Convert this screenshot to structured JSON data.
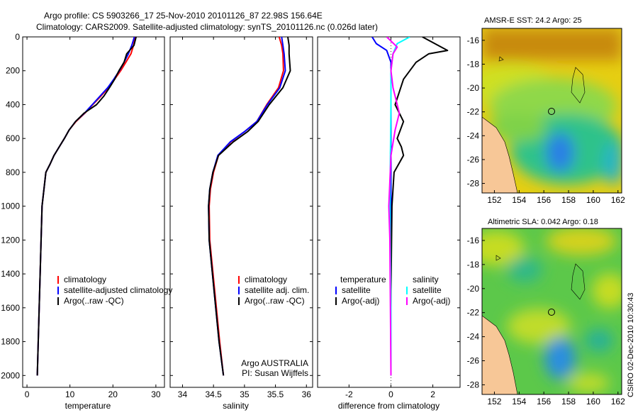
{
  "header": {
    "title_line1": "Argo profile: CS 5903266_17 25-Nov-2010 20101126_87 22.98S 156.64E",
    "title_line2": "Climatology: CARS2009. Satellite-adjusted climatology: synTS_20101126.nc (0.026d later)"
  },
  "side_stamp": "CSIRO 02-Dec-2010 10:30:43",
  "colors": {
    "clim": "#ff0000",
    "sat": "#0000ff",
    "argo": "#000000",
    "sal_sat": "#00ffff",
    "sal_argo": "#ff00ff"
  },
  "chart_data": [
    {
      "type": "line",
      "id": "temperature",
      "xlabel": "temperature",
      "ylabel": "",
      "xlim": [
        -1,
        32
      ],
      "ylim": [
        0,
        2070
      ],
      "xticks": [
        "0",
        "10",
        "20",
        "30"
      ],
      "xtick_values": [
        0,
        10,
        20,
        30
      ],
      "yticks": [
        "0",
        "200",
        "400",
        "600",
        "800",
        "1000",
        "1200",
        "1400",
        "1600",
        "1800",
        "2000"
      ],
      "legend": [
        "climatology",
        "satellite-adjusted climatology",
        "Argo(..raw -QC)"
      ],
      "series": [
        {
          "name": "climatology",
          "color": "#ff0000",
          "x": [
            25.2,
            24.8,
            24.2,
            23.0,
            21.8,
            20.4,
            19.0,
            17.2,
            15.3,
            13.5,
            11.4,
            9.8,
            8.7,
            7.5,
            6.3,
            5.4,
            4.4,
            3.5,
            2.4
          ],
          "y": [
            0,
            50,
            100,
            150,
            200,
            250,
            300,
            350,
            400,
            450,
            500,
            550,
            600,
            650,
            700,
            750,
            800,
            1000,
            2000
          ]
        },
        {
          "name": "satellite-adjusted climatology",
          "color": "#0000ff",
          "x": [
            25.0,
            24.4,
            23.6,
            22.6,
            21.5,
            20.2,
            18.8,
            17.0,
            15.2,
            13.4,
            11.3,
            9.8,
            8.7,
            7.5,
            6.3,
            5.4,
            4.4,
            3.5,
            2.4
          ],
          "y": [
            0,
            50,
            100,
            150,
            200,
            250,
            300,
            350,
            400,
            450,
            500,
            550,
            600,
            650,
            700,
            750,
            800,
            1000,
            2000
          ]
        },
        {
          "name": "Argo(..raw -QC)",
          "color": "#000000",
          "x": [
            25.4,
            24.9,
            23.2,
            22.6,
            21.4,
            20.4,
            19.2,
            17.9,
            16.2,
            13.3,
            11.3,
            9.8,
            8.7,
            7.5,
            6.3,
            5.4,
            4.4,
            3.5,
            2.4
          ],
          "y": [
            0,
            50,
            100,
            150,
            200,
            250,
            300,
            350,
            400,
            450,
            500,
            550,
            600,
            650,
            700,
            750,
            800,
            1000,
            2000
          ]
        }
      ]
    },
    {
      "type": "line",
      "id": "salinity",
      "xlabel": "salinity",
      "ylabel": "",
      "xlim": [
        33.8,
        36.1
      ],
      "ylim": [
        0,
        2070
      ],
      "xticks": [
        "34",
        "34.5",
        "35",
        "35.5",
        "36"
      ],
      "xtick_values": [
        34,
        34.5,
        35,
        35.5,
        36
      ],
      "legend": [
        "climatology",
        "satellite adj. clim.",
        "Argo(..raw -QC)"
      ],
      "annotation": [
        "Argo AUSTRALIA",
        "PI: Susan Wijffels"
      ],
      "series": [
        {
          "name": "climatology",
          "color": "#ff0000",
          "x": [
            35.56,
            35.6,
            35.62,
            35.63,
            35.55,
            35.36,
            35.2,
            35.0,
            34.78,
            34.58,
            34.5,
            34.45,
            34.43,
            34.44,
            34.52,
            34.6,
            34.66
          ],
          "y": [
            0,
            50,
            100,
            200,
            300,
            400,
            500,
            560,
            620,
            700,
            800,
            900,
            1000,
            1200,
            1500,
            1800,
            2000
          ]
        },
        {
          "name": "satellite adj. clim.",
          "color": "#0000ff",
          "x": [
            35.6,
            35.62,
            35.64,
            35.66,
            35.57,
            35.37,
            35.2,
            35.0,
            34.77,
            34.57,
            34.49,
            34.44,
            34.42,
            34.43,
            34.51,
            34.59,
            34.66
          ],
          "y": [
            0,
            50,
            100,
            200,
            300,
            400,
            500,
            560,
            620,
            700,
            800,
            900,
            1000,
            1200,
            1500,
            1800,
            2000
          ]
        },
        {
          "name": "Argo(..raw -QC)",
          "color": "#000000",
          "x": [
            35.7,
            35.72,
            35.72,
            35.74,
            35.62,
            35.4,
            35.22,
            35.05,
            34.82,
            34.58,
            34.49,
            34.44,
            34.42,
            34.43,
            34.51,
            34.59,
            34.66
          ],
          "y": [
            0,
            50,
            100,
            200,
            300,
            400,
            500,
            560,
            620,
            700,
            800,
            900,
            1000,
            1200,
            1500,
            1800,
            2000
          ]
        }
      ]
    },
    {
      "type": "line",
      "id": "difference",
      "xlabel": "difference from climatology",
      "xlim": [
        -3.5,
        3.3
      ],
      "ylim": [
        0,
        2070
      ],
      "xticks": [
        "-2",
        "0",
        "2"
      ],
      "xtick_values": [
        -2,
        0,
        2
      ],
      "legend_groups": [
        {
          "title": "temperature",
          "entries": [
            "satellite",
            "Argo(-adj)"
          ]
        },
        {
          "title": "salinity",
          "entries": [
            "satellite",
            "Argo(-adj)"
          ]
        }
      ],
      "series": [
        {
          "name": "temperature satellite",
          "color": "#0000ff",
          "x": [
            -0.9,
            -0.7,
            -0.2,
            0.0,
            0.0,
            0.0,
            0.0,
            0.0
          ],
          "y": [
            0,
            40,
            80,
            150,
            300,
            800,
            1500,
            2000
          ]
        },
        {
          "name": "temperature Argo(-adj)",
          "color": "#000000",
          "x": [
            1.5,
            2.7,
            1.8,
            1.2,
            0.6,
            0.2,
            0.6,
            0.3,
            0.5,
            0.6,
            0.15,
            0.05,
            0.0,
            0.0
          ],
          "y": [
            0,
            80,
            100,
            150,
            250,
            400,
            500,
            600,
            650,
            700,
            800,
            1000,
            1500,
            2000
          ]
        },
        {
          "name": "salinity satellite",
          "color": "#00ffff",
          "x": [
            0.9,
            0.3,
            0.1,
            0.0,
            0.0,
            0.0,
            -0.05,
            0.0,
            0.0
          ],
          "y": [
            0,
            40,
            100,
            200,
            300,
            400,
            1000,
            1600,
            2000
          ]
        },
        {
          "name": "salinity Argo(-adj)",
          "color": "#ff00ff",
          "x": [
            -0.2,
            0.3,
            0.1,
            0.0,
            0.1,
            0.4,
            0.2,
            0.0,
            -0.1,
            -0.05,
            0.0
          ],
          "y": [
            0,
            60,
            100,
            200,
            300,
            450,
            550,
            700,
            1000,
            1200,
            2000
          ]
        }
      ]
    }
  ],
  "maps": [
    {
      "id": "sst",
      "title": "AMSR-E SST: 24.2 Argo: 25",
      "xticks": [
        "152",
        "154",
        "156",
        "158",
        "160",
        "162"
      ],
      "yticks": [
        "-16",
        "-18",
        "-20",
        "-22",
        "-24",
        "-26",
        "-28"
      ]
    },
    {
      "id": "sla",
      "title": "Altimetric SLA: 0.042 Argo: 0.18",
      "xticks": [
        "152",
        "154",
        "156",
        "158",
        "160",
        "162"
      ],
      "yticks": [
        "-16",
        "-18",
        "-20",
        "-22",
        "-24",
        "-26",
        "-28"
      ]
    }
  ]
}
